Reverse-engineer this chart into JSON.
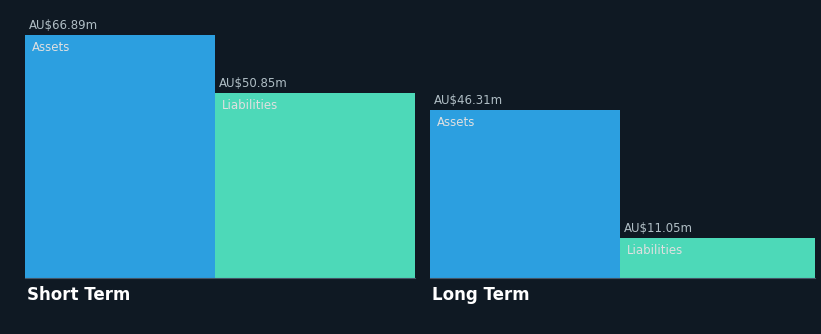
{
  "background_color": "#0f1923",
  "short_term": {
    "assets_value": 66.89,
    "liabilities_value": 50.85,
    "assets_label": "Assets",
    "liabilities_label": "Liabilities",
    "assets_color": "#2c9fe0",
    "liabilities_color": "#4dd9b8",
    "label": "Short Term"
  },
  "long_term": {
    "assets_value": 46.31,
    "liabilities_value": 11.05,
    "assets_label": "Assets",
    "liabilities_label": "Liabilities",
    "assets_color": "#2c9fe0",
    "liabilities_color": "#4dd9b8",
    "label": "Long Term"
  },
  "max_value": 66.89,
  "value_label_color": "#b0bec5",
  "inner_label_color": "#e0e0e0",
  "section_label_color": "#ffffff",
  "value_fontsize": 8.5,
  "inner_label_fontsize": 8.5,
  "section_label_fontsize": 12
}
